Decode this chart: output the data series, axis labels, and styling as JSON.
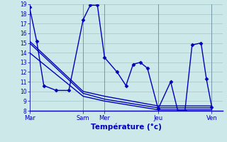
{
  "xlabel": "Température (°c)",
  "bg_color": "#cce8e8",
  "line_color": "#0000bb",
  "grid_color": "#aacccc",
  "ylim": [
    8,
    19
  ],
  "yticks": [
    8,
    9,
    10,
    11,
    12,
    13,
    14,
    15,
    16,
    17,
    18,
    19
  ],
  "xtick_labels": [
    "Mar",
    "Sam",
    "Mer",
    "Jeu",
    "Ven"
  ],
  "xtick_positions": [
    0,
    60,
    84,
    144,
    204
  ],
  "xlim": [
    0,
    216
  ],
  "series": [
    {
      "x": [
        0,
        8,
        16,
        30,
        44,
        60,
        68,
        76,
        84,
        98,
        108,
        116,
        124,
        132,
        144,
        158,
        166,
        174,
        182,
        192,
        198,
        204
      ],
      "y": [
        18.7,
        15.2,
        10.6,
        10.1,
        10.1,
        17.4,
        18.9,
        18.9,
        13.5,
        12.0,
        10.6,
        12.8,
        13.0,
        12.4,
        8.2,
        11.0,
        8.0,
        8.0,
        14.8,
        15.0,
        11.3,
        8.4
      ],
      "marker": true
    },
    {
      "x": [
        0,
        60,
        84,
        144,
        204
      ],
      "y": [
        15.2,
        10.0,
        9.5,
        8.5,
        8.5
      ],
      "marker": false
    },
    {
      "x": [
        0,
        60,
        84,
        144,
        204
      ],
      "y": [
        15.0,
        9.8,
        9.2,
        8.3,
        8.3
      ],
      "marker": false
    },
    {
      "x": [
        0,
        60,
        84,
        144,
        204
      ],
      "y": [
        14.0,
        9.5,
        9.0,
        8.1,
        8.1
      ],
      "marker": false
    }
  ],
  "marker_style": "D",
  "markersize": 2.5,
  "linewidth": 1.0,
  "figsize": [
    3.2,
    2.0
  ],
  "dpi": 100
}
